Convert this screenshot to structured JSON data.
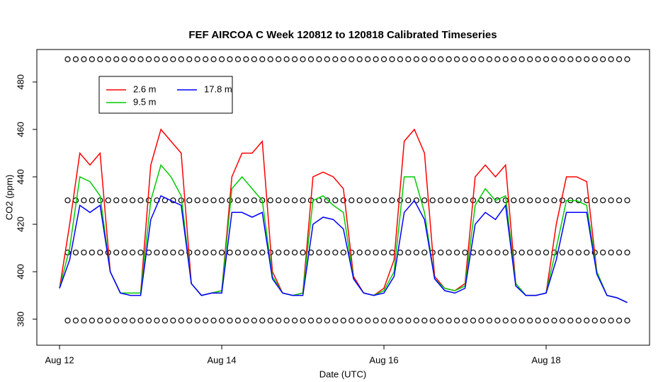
{
  "chart_data": {
    "type": "line",
    "title": "FEF AIRCOA C  Week 120812 to 120818  Calibrated Timeseries",
    "x_label": "Date (UTC)",
    "y_label": "CO2 (ppm)",
    "x": [
      0,
      0.125,
      0.25,
      0.375,
      0.5,
      0.625,
      0.75,
      0.875,
      1,
      1.125,
      1.25,
      1.375,
      1.5,
      1.625,
      1.75,
      1.875,
      2,
      2.125,
      2.25,
      2.375,
      2.5,
      2.625,
      2.75,
      2.875,
      3,
      3.125,
      3.25,
      3.375,
      3.5,
      3.625,
      3.75,
      3.875,
      4,
      4.125,
      4.25,
      4.375,
      4.5,
      4.625,
      4.75,
      4.875,
      5,
      5.125,
      5.25,
      5.375,
      5.5,
      5.625,
      5.75,
      5.875,
      6,
      6.125,
      6.25,
      6.375,
      6.5,
      6.625,
      6.75,
      6.875,
      7
    ],
    "series": [
      {
        "name": "2.6 m",
        "color": "#ff0000",
        "values": [
          393,
          420,
          450,
          445,
          450,
          400,
          391,
          391,
          391,
          445,
          460,
          455,
          450,
          395,
          390,
          391,
          392,
          440,
          450,
          450,
          455,
          400,
          391,
          390,
          391,
          440,
          442,
          440,
          435,
          398,
          391,
          390,
          393,
          405,
          455,
          460,
          450,
          398,
          393,
          392,
          395,
          440,
          445,
          440,
          445,
          395,
          390,
          390,
          391,
          420,
          440,
          440,
          438,
          400,
          390,
          389,
          387
        ]
      },
      {
        "name": "9.5 m",
        "color": "#00cc00",
        "values": [
          393,
          410,
          440,
          438,
          432,
          400,
          391,
          391,
          391,
          430,
          445,
          440,
          432,
          395,
          390,
          391,
          392,
          435,
          440,
          435,
          430,
          398,
          391,
          390,
          391,
          430,
          432,
          428,
          425,
          397,
          391,
          390,
          392,
          400,
          440,
          440,
          425,
          397,
          393,
          392,
          394,
          428,
          435,
          430,
          432,
          395,
          390,
          390,
          391,
          410,
          430,
          430,
          428,
          400,
          390,
          389,
          387
        ]
      },
      {
        "name": "17.8 m",
        "color": "#0000ff",
        "values": [
          393,
          405,
          428,
          425,
          428,
          400,
          391,
          390,
          390,
          422,
          432,
          430,
          428,
          395,
          390,
          391,
          391,
          425,
          425,
          423,
          425,
          397,
          391,
          390,
          390,
          420,
          423,
          422,
          418,
          397,
          391,
          390,
          391,
          398,
          425,
          430,
          422,
          397,
          392,
          391,
          393,
          420,
          425,
          422,
          428,
          394,
          390,
          390,
          391,
          405,
          425,
          425,
          425,
          399,
          390,
          389,
          387
        ]
      }
    ],
    "cal_levels": [
      489.6,
      430.1,
      408.1,
      379.4
    ],
    "cal_x": [
      0.1,
      0.2,
      0.3,
      0.4,
      0.5,
      0.6,
      0.7,
      0.8,
      0.9,
      1,
      1.1,
      1.2,
      1.3,
      1.4,
      1.5,
      1.6,
      1.7,
      1.8,
      1.9,
      2,
      2.1,
      2.2,
      2.3,
      2.4,
      2.5,
      2.6,
      2.7,
      2.8,
      2.9,
      3,
      3.1,
      3.2,
      3.3,
      3.4,
      3.5,
      3.6,
      3.7,
      3.8,
      3.9,
      4,
      4.1,
      4.2,
      4.3,
      4.4,
      4.5,
      4.6,
      4.7,
      4.8,
      4.9,
      5,
      5.1,
      5.2,
      5.3,
      5.4,
      5.5,
      5.6,
      5.7,
      5.8,
      5.9,
      6,
      6.1,
      6.2,
      6.3,
      6.4,
      6.5,
      6.6,
      6.7,
      6.8,
      6.9,
      7
    ],
    "xlim": [
      -0.28,
      7.275
    ],
    "xticks": [
      {
        "value": 0,
        "label": "Aug 12"
      },
      {
        "value": 2,
        "label": "Aug 14"
      },
      {
        "value": 4,
        "label": "Aug 16"
      },
      {
        "value": 6,
        "label": "Aug 18"
      }
    ],
    "ylim": [
      369,
      493.7
    ],
    "yticks": [
      380,
      400,
      420,
      440,
      460,
      480
    ],
    "legend": "top-left"
  }
}
